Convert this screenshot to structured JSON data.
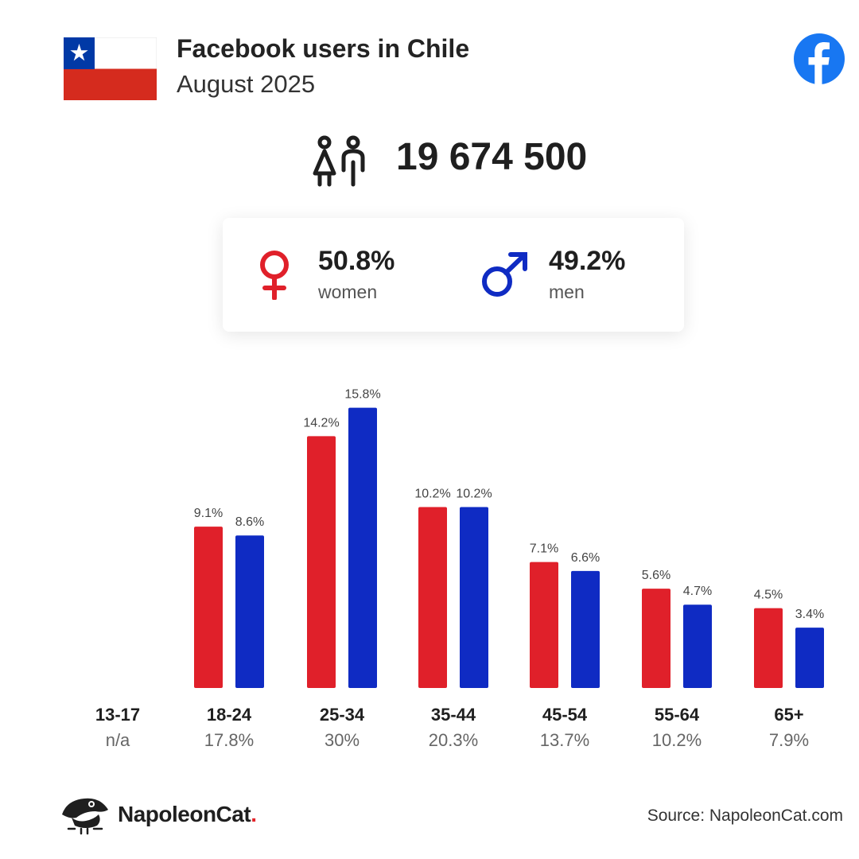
{
  "header": {
    "title": "Facebook users in Chile",
    "subtitle": "August 2025"
  },
  "flag": {
    "country": "Chile",
    "icon": "chile-flag-icon"
  },
  "brand_icon": "facebook-logo-icon",
  "total_users": "19 674 500",
  "gender": {
    "women": {
      "percent": "50.8%",
      "label": "women",
      "color": "#e0202a"
    },
    "men": {
      "percent": "49.2%",
      "label": "men",
      "color": "#0f2bc3"
    }
  },
  "chart_data": {
    "type": "bar",
    "categories": [
      "13-17",
      "18-24",
      "25-34",
      "35-44",
      "45-54",
      "55-64",
      "65+"
    ],
    "category_totals": [
      "n/a",
      "17.8%",
      "30%",
      "20.3%",
      "13.7%",
      "10.2%",
      "7.9%"
    ],
    "series": [
      {
        "key": "women",
        "color": "#e0202a",
        "values": [
          null,
          9.1,
          14.2,
          10.2,
          7.1,
          5.6,
          4.5
        ],
        "labels": [
          "",
          "9.1%",
          "14.2%",
          "10.2%",
          "7.1%",
          "5.6%",
          "4.5%"
        ]
      },
      {
        "key": "men",
        "color": "#0f2bc3",
        "values": [
          null,
          8.6,
          15.8,
          10.2,
          6.6,
          4.7,
          3.4
        ],
        "labels": [
          "",
          "8.6%",
          "15.8%",
          "10.2%",
          "6.6%",
          "4.7%",
          "3.4%"
        ]
      }
    ],
    "ylim": [
      0,
      16
    ],
    "grid": false
  },
  "footer": {
    "logo_text": "NapoleonCat",
    "logo_dot": ".",
    "source": "Source: NapoleonCat.com"
  }
}
